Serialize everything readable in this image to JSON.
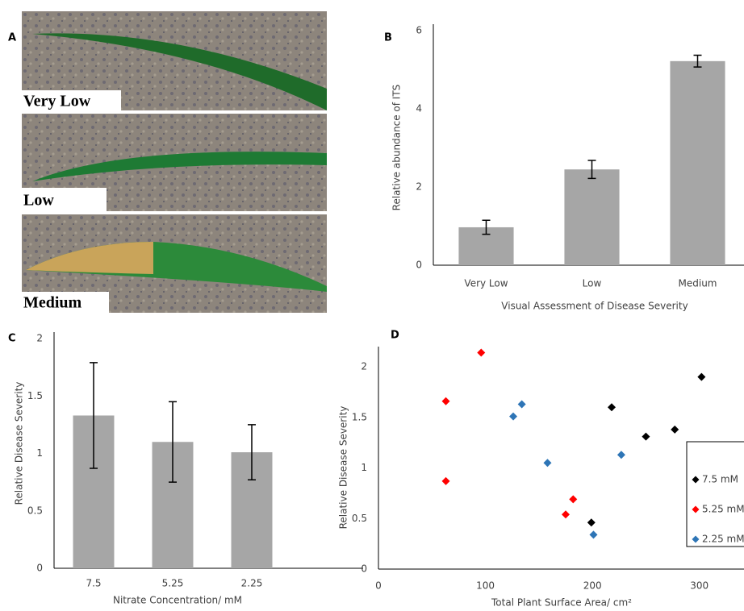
{
  "panel_a": {
    "panel": "A",
    "labels": [
      "Very Low",
      "Low",
      "Medium"
    ]
  },
  "chart_data": [
    {
      "type": "bar",
      "panel": "B",
      "x_label": "Visual Assessment of Disease Severity",
      "y_label": "Relative abundance of ITS",
      "categories": [
        "Very Low",
        "Low",
        "Medium"
      ],
      "values": [
        0.97,
        2.45,
        5.22
      ],
      "errors": [
        0.18,
        0.23,
        0.15
      ],
      "color": "#a6a6a6",
      "ylim": [
        0,
        6
      ],
      "yticks": [
        0,
        2,
        4,
        6
      ]
    },
    {
      "type": "bar",
      "panel": "C",
      "x_label": "Nitrate Concentration/ mM",
      "y_label": "Relative Disease Severity",
      "categories": [
        "7.5",
        "5.25",
        "2.25"
      ],
      "values": [
        1.33,
        1.1,
        1.01
      ],
      "errors": [
        0.46,
        0.35,
        0.24
      ],
      "color": "#a6a6a6",
      "ylim": [
        0,
        2
      ],
      "yticks": [
        0,
        0.5,
        1,
        1.5,
        2
      ]
    },
    {
      "type": "scatter",
      "panel": "D",
      "x_label": "Total Plant Surface Area/ cm²",
      "y_label": "Relative Disease Severity",
      "xlim": [
        0,
        350
      ],
      "xticks": [
        0,
        100,
        200,
        300
      ],
      "ylim": [
        0,
        2.2
      ],
      "yticks": [
        0,
        0.5,
        1,
        1.5,
        2
      ],
      "series": [
        {
          "name": "7.5 mM",
          "color": "#000000",
          "x": [
            302,
            277,
            250,
            218,
            199
          ],
          "values": [
            1.9,
            1.38,
            1.31,
            1.6,
            0.46
          ]
        },
        {
          "name": "5.25 mM",
          "color": "#ff0000",
          "x": [
            96,
            63,
            63,
            182,
            175
          ],
          "values": [
            2.14,
            1.66,
            0.87,
            0.69,
            0.54
          ]
        },
        {
          "name": "2.25 mM",
          "color": "#2e75b6",
          "x": [
            134,
            126,
            158,
            227,
            201
          ],
          "values": [
            1.63,
            1.51,
            1.05,
            1.13,
            0.34
          ]
        }
      ]
    }
  ]
}
